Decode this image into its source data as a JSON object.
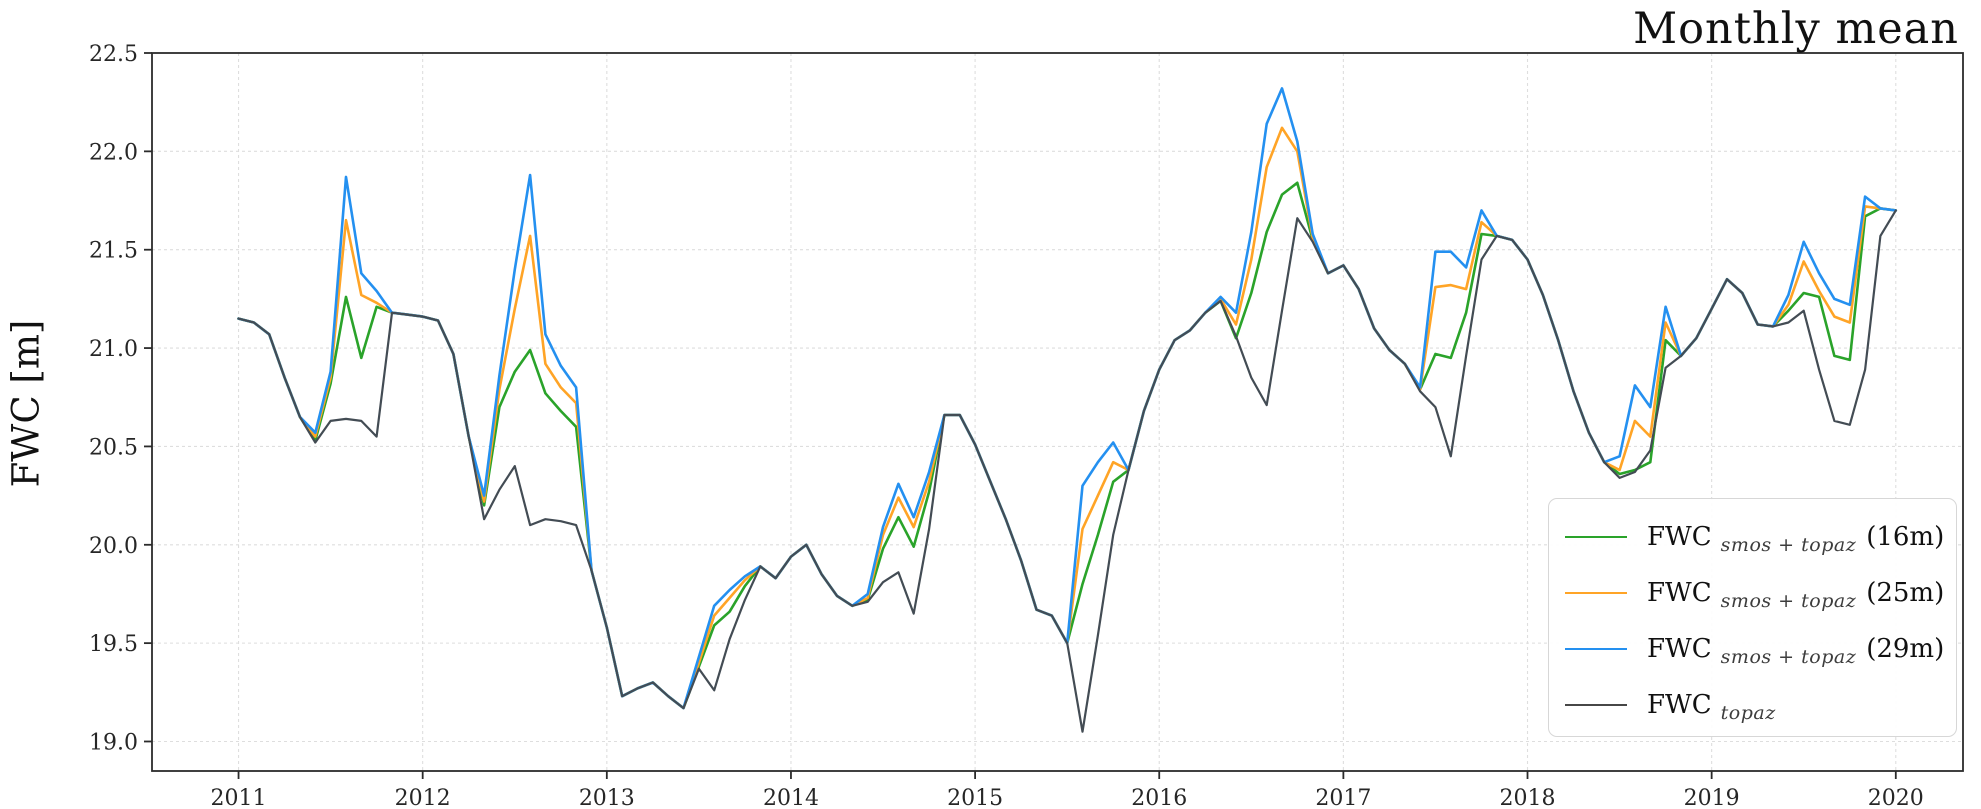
{
  "title": "Monthly mean",
  "axes": {
    "ylabel": "FWC [m]",
    "yticks": [
      22.5,
      22.0,
      21.5,
      21.0,
      20.5,
      20.0,
      19.5,
      19.0
    ],
    "ytick_labels": [
      "22.5",
      "22.0",
      "21.5",
      "21.0",
      "20.5",
      "20.0",
      "19.5",
      "19.0"
    ],
    "xticks": [
      2011,
      2012,
      2013,
      2014,
      2015,
      2016,
      2017,
      2018,
      2019,
      2020
    ],
    "xtick_labels": [
      "2011",
      "2012",
      "2013",
      "2014",
      "2015",
      "2016",
      "2017",
      "2018",
      "2019",
      "2020"
    ],
    "grid": true,
    "grid_color": "#dedede",
    "spine_color": "#2b2b2b",
    "tick_label_color": "#262626"
  },
  "legend": {
    "position": "lower right",
    "entries": [
      {
        "prefix": "FWC",
        "sub": "smos + topaz",
        "size": "(16m)",
        "color": "#2aa32a"
      },
      {
        "prefix": "FWC",
        "sub": "smos + topaz",
        "size": "(25m)",
        "color": "#ffa426"
      },
      {
        "prefix": "FWC",
        "sub": "smos + topaz",
        "size": "(29m)",
        "color": "#2490f0"
      },
      {
        "prefix": "FWC",
        "sub": "topaz",
        "size": "",
        "color": "#474747"
      }
    ]
  },
  "chart_data": {
    "type": "line",
    "title": "Monthly mean",
    "xlabel": "",
    "ylabel": "FWC [m]",
    "xlim": [
      2010.53,
      2020.365
    ],
    "ylim": [
      18.85,
      22.5
    ],
    "x_start_year": 2011,
    "points_per_month": 1,
    "n_points": 109,
    "x_note": "monthly values Jan 2011 through Jan 2020; x_i = 2011 + i/12",
    "series": [
      {
        "name": "FWC smos+topaz (16m)",
        "color": "#2aa32a",
        "width": 2.6,
        "values": [
          21.15,
          21.13,
          21.07,
          20.85,
          20.65,
          20.53,
          20.82,
          21.26,
          20.95,
          21.21,
          21.18,
          21.17,
          21.16,
          21.14,
          20.97,
          20.55,
          20.2,
          20.7,
          20.88,
          20.99,
          20.77,
          20.68,
          20.6,
          19.87,
          19.58,
          19.23,
          19.27,
          19.3,
          19.23,
          19.17,
          19.38,
          19.59,
          19.66,
          19.79,
          19.89,
          19.83,
          19.94,
          20.0,
          19.85,
          19.74,
          19.69,
          19.72,
          19.98,
          20.14,
          19.99,
          20.27,
          20.66,
          20.66,
          20.51,
          20.32,
          20.13,
          19.92,
          19.67,
          19.64,
          19.5,
          19.8,
          20.05,
          20.32,
          20.38,
          20.68,
          20.89,
          21.04,
          21.09,
          21.18,
          21.24,
          21.05,
          21.28,
          21.59,
          21.78,
          21.84,
          21.55,
          21.38,
          21.42,
          21.3,
          21.1,
          20.99,
          20.92,
          20.79,
          20.97,
          20.95,
          21.18,
          21.58,
          21.57,
          21.55,
          21.45,
          21.27,
          21.04,
          20.78,
          20.57,
          20.42,
          20.36,
          20.38,
          20.42,
          21.04,
          20.96,
          21.05,
          21.2,
          21.35,
          21.28,
          21.12,
          21.11,
          21.19,
          21.28,
          21.26,
          20.96,
          20.94,
          21.67,
          21.71,
          21.7
        ]
      },
      {
        "name": "FWC smos+topaz (25m)",
        "color": "#ffa426",
        "width": 2.6,
        "values": [
          21.15,
          21.13,
          21.07,
          20.85,
          20.65,
          20.55,
          20.85,
          21.65,
          21.27,
          21.23,
          21.18,
          21.17,
          21.16,
          21.14,
          20.97,
          20.55,
          20.22,
          20.79,
          21.2,
          21.57,
          20.92,
          20.8,
          20.72,
          19.87,
          19.58,
          19.23,
          19.27,
          19.3,
          19.23,
          19.17,
          19.4,
          19.64,
          19.73,
          19.82,
          19.89,
          19.83,
          19.94,
          20.0,
          19.85,
          19.74,
          19.69,
          19.73,
          20.05,
          20.24,
          20.09,
          20.32,
          20.66,
          20.66,
          20.51,
          20.32,
          20.13,
          19.92,
          19.67,
          19.64,
          19.5,
          20.08,
          20.25,
          20.42,
          20.38,
          20.68,
          20.89,
          21.04,
          21.09,
          21.18,
          21.25,
          21.12,
          21.45,
          21.92,
          22.12,
          22.0,
          21.56,
          21.38,
          21.42,
          21.3,
          21.1,
          20.99,
          20.92,
          20.79,
          21.31,
          21.32,
          21.3,
          21.64,
          21.57,
          21.55,
          21.45,
          21.27,
          21.04,
          20.78,
          20.57,
          20.42,
          20.38,
          20.63,
          20.55,
          21.13,
          20.96,
          21.05,
          21.2,
          21.35,
          21.28,
          21.12,
          21.11,
          21.22,
          21.44,
          21.29,
          21.16,
          21.13,
          21.72,
          21.71,
          21.7
        ]
      },
      {
        "name": "FWC smos+topaz (29m)",
        "color": "#2490f0",
        "width": 2.6,
        "values": [
          21.15,
          21.13,
          21.07,
          20.85,
          20.65,
          20.57,
          20.88,
          21.87,
          21.38,
          21.29,
          21.18,
          21.17,
          21.16,
          21.14,
          20.97,
          20.55,
          20.25,
          20.86,
          21.4,
          21.88,
          21.07,
          20.91,
          20.8,
          19.87,
          19.58,
          19.23,
          19.27,
          19.3,
          19.23,
          19.17,
          19.43,
          19.69,
          19.77,
          19.84,
          19.89,
          19.83,
          19.94,
          20.0,
          19.85,
          19.74,
          19.69,
          19.75,
          20.09,
          20.31,
          20.14,
          20.37,
          20.66,
          20.66,
          20.51,
          20.32,
          20.13,
          19.92,
          19.67,
          19.64,
          19.5,
          20.3,
          20.42,
          20.52,
          20.38,
          20.68,
          20.89,
          21.04,
          21.09,
          21.18,
          21.26,
          21.18,
          21.59,
          22.14,
          22.32,
          22.05,
          21.58,
          21.38,
          21.42,
          21.3,
          21.1,
          20.99,
          20.92,
          20.8,
          21.49,
          21.49,
          21.41,
          21.7,
          21.57,
          21.55,
          21.45,
          21.27,
          21.04,
          20.78,
          20.57,
          20.42,
          20.45,
          20.81,
          20.7,
          21.21,
          20.96,
          21.05,
          21.2,
          21.35,
          21.28,
          21.12,
          21.11,
          21.27,
          21.54,
          21.38,
          21.25,
          21.22,
          21.77,
          21.71,
          21.7
        ]
      },
      {
        "name": "FWC topaz",
        "color": "#434c54",
        "width": 2.2,
        "values": [
          21.15,
          21.13,
          21.07,
          20.85,
          20.65,
          20.52,
          20.63,
          20.64,
          20.63,
          20.55,
          21.18,
          21.17,
          21.16,
          21.14,
          20.97,
          20.55,
          20.13,
          20.28,
          20.4,
          20.1,
          20.13,
          20.12,
          20.1,
          19.87,
          19.58,
          19.23,
          19.27,
          19.3,
          19.23,
          19.17,
          19.37,
          19.26,
          19.52,
          19.72,
          19.89,
          19.83,
          19.94,
          20.0,
          19.85,
          19.74,
          19.69,
          19.71,
          19.81,
          19.86,
          19.65,
          20.08,
          20.66,
          20.66,
          20.51,
          20.32,
          20.13,
          19.92,
          19.67,
          19.64,
          19.5,
          19.05,
          19.54,
          20.05,
          20.38,
          20.68,
          20.89,
          21.04,
          21.09,
          21.18,
          21.24,
          21.06,
          20.85,
          20.71,
          21.19,
          21.66,
          21.54,
          21.38,
          21.42,
          21.3,
          21.1,
          20.99,
          20.92,
          20.78,
          20.7,
          20.45,
          20.96,
          21.45,
          21.57,
          21.55,
          21.45,
          21.27,
          21.04,
          20.78,
          20.57,
          20.42,
          20.34,
          20.37,
          20.48,
          20.9,
          20.96,
          21.05,
          21.2,
          21.35,
          21.28,
          21.12,
          21.11,
          21.13,
          21.19,
          20.89,
          20.63,
          20.61,
          20.89,
          21.57,
          21.7
        ]
      }
    ]
  }
}
